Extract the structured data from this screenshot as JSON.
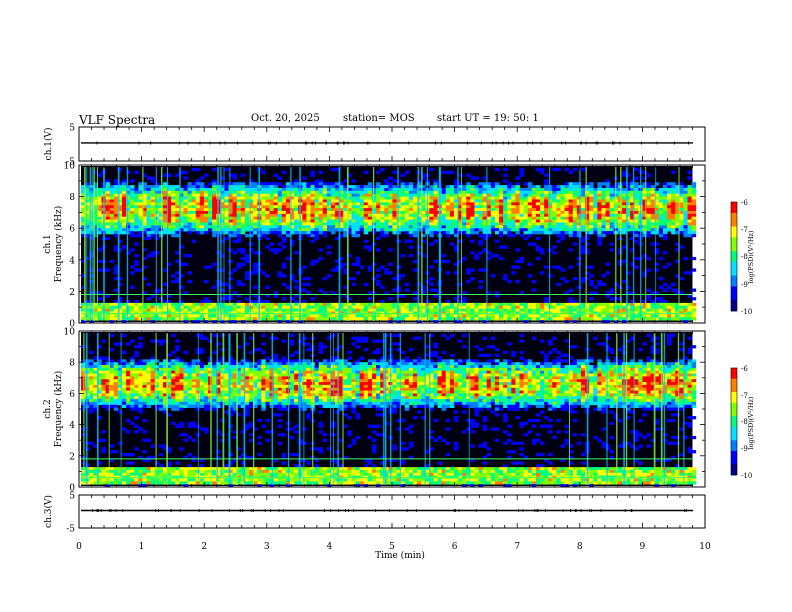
{
  "header": {
    "title": "VLF Spectra",
    "date": "Oct. 20, 2025",
    "station": "station= MOS",
    "start": "start  UT  =    19: 50: 1"
  },
  "chart_data": {
    "type": "heatmap",
    "title": "VLF Spectra",
    "xlabel": "Time  (min)",
    "xlim": [
      0,
      10
    ],
    "x_ticks": [
      "0",
      "1",
      "2",
      "3",
      "4",
      "5",
      "6",
      "7",
      "8",
      "9",
      "10"
    ],
    "panels": [
      {
        "name": "ch1-voltage",
        "kind": "line",
        "ylabel": "ch.1(V)",
        "ylim": [
          -5,
          5
        ],
        "y_ticks": [
          "5",
          "-5"
        ],
        "level": 0.3
      },
      {
        "name": "ch1-spectrogram",
        "kind": "spectrogram",
        "ylabel": "ch.1\nFrequency  (kHz)",
        "ylim": [
          0,
          10
        ],
        "y_ticks": [
          "0",
          "2",
          "4",
          "6",
          "8",
          "10"
        ],
        "band_center": 7.2,
        "band_width": 3.6,
        "colorbar": "ch1"
      },
      {
        "name": "ch2-spectrogram",
        "kind": "spectrogram",
        "ylabel": "ch.2\nFrequency  (kHz)",
        "ylim": [
          0,
          10
        ],
        "y_ticks": [
          "0",
          "2",
          "4",
          "6",
          "8",
          "10"
        ],
        "band_center": 6.6,
        "band_width": 3.4,
        "colorbar": "ch2"
      },
      {
        "name": "ch3-voltage",
        "kind": "line",
        "ylabel": "ch.3(V)",
        "ylim": [
          -5,
          5
        ],
        "y_ticks": [
          "5",
          "-5"
        ],
        "level": 0.3
      }
    ],
    "colorbar": {
      "label": "log(PSD)(V²/Hz)",
      "range": [
        -10,
        -6
      ],
      "ticks": [
        "-6",
        "-7",
        "-8",
        "-9",
        "-10"
      ],
      "colors": [
        "#000080",
        "#0000ff",
        "#0080ff",
        "#00e0ff",
        "#00ff80",
        "#80ff00",
        "#ffff00",
        "#ff8000",
        "#ff0000",
        "#ffffff"
      ]
    }
  }
}
